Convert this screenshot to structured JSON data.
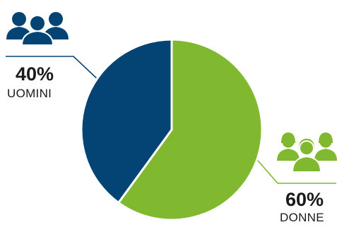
{
  "chart_data": {
    "type": "pie",
    "categories": [
      "UOMINI",
      "DONNE"
    ],
    "values": [
      40,
      60
    ],
    "value_labels": [
      "40%",
      "60%"
    ],
    "colors": [
      "#044475",
      "#80b92f"
    ],
    "legend": "none"
  },
  "icons": {
    "men": "men-group-icon",
    "women": "women-group-icon"
  }
}
